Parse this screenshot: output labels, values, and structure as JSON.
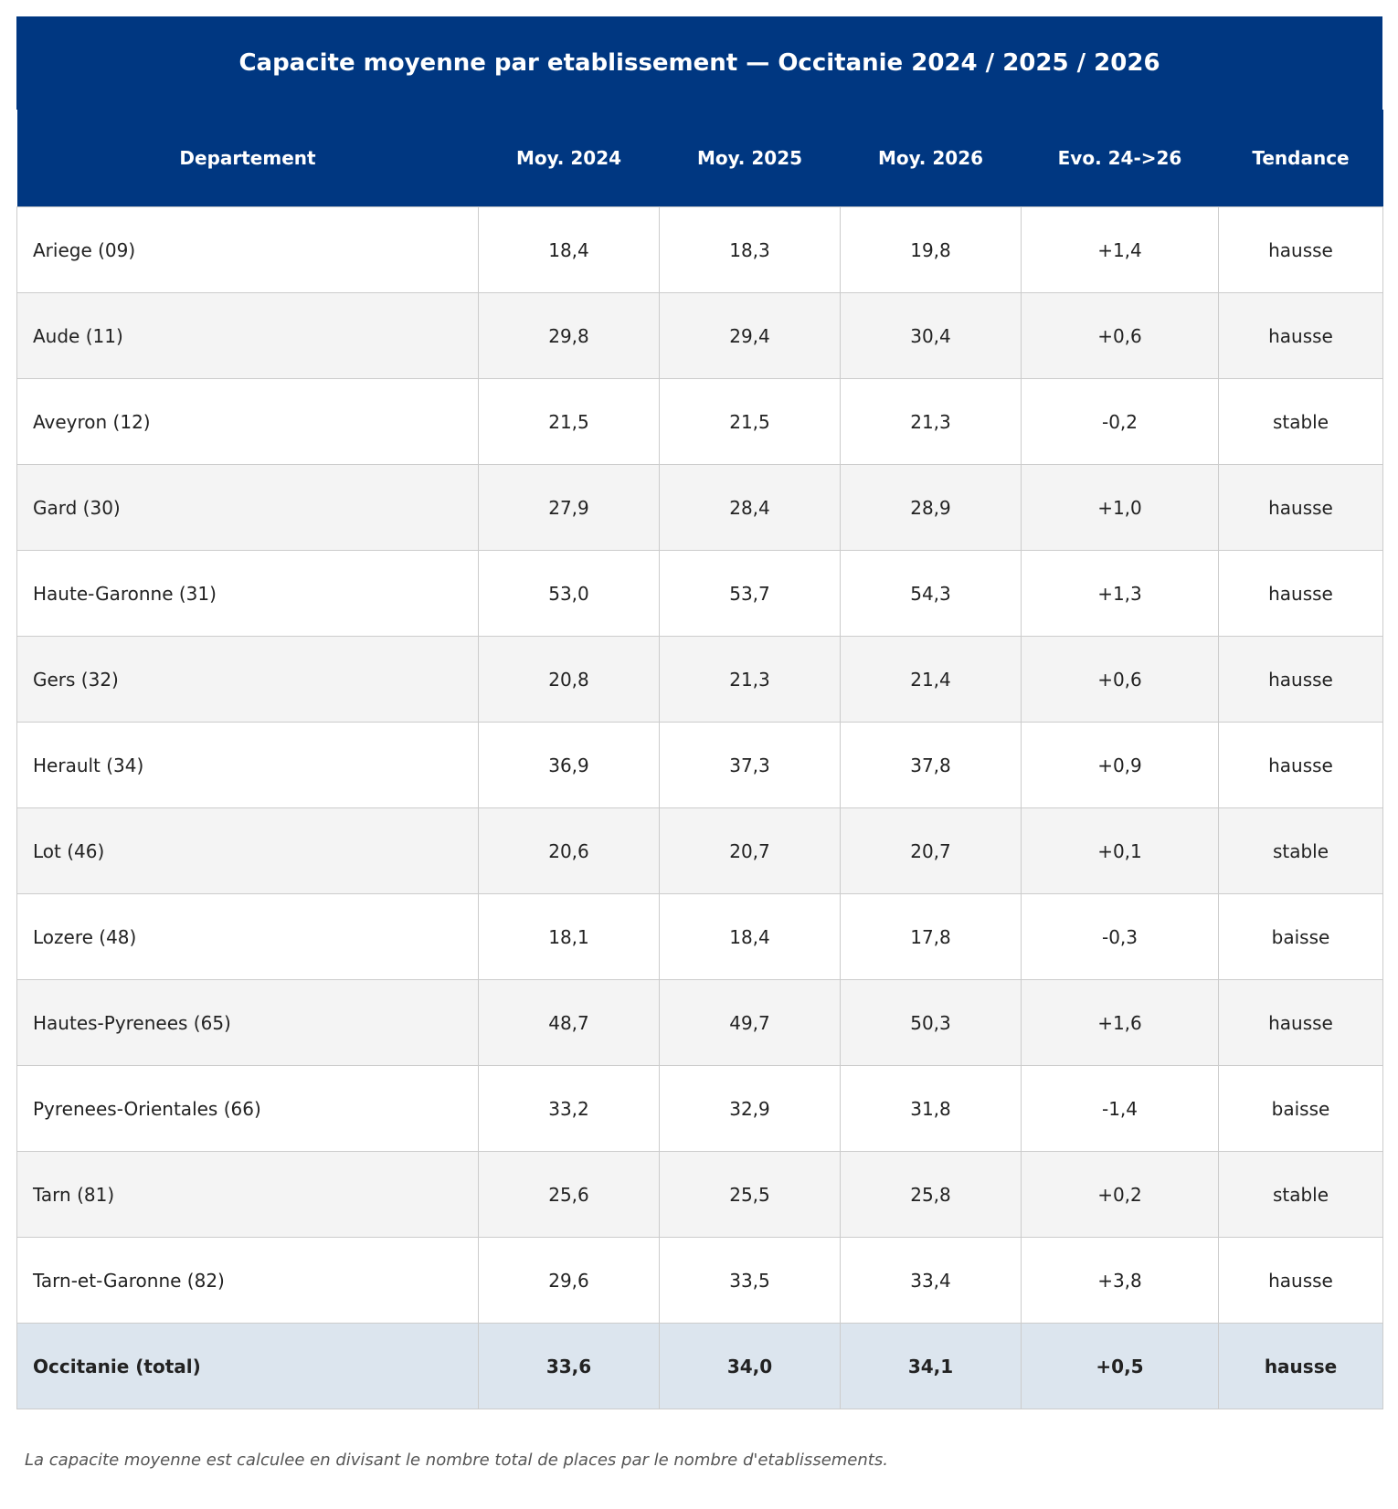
{
  "title": "Capacite moyenne par etablissement — Occitanie 2024 / 2025 / 2026",
  "columns": [
    "Departement",
    "Moy. 2024",
    "Moy. 2025",
    "Moy. 2026",
    "Evo. 24->26",
    "Tendance"
  ],
  "rows": [
    {
      "dept": "Ariege (09)",
      "m2024": "18,4",
      "m2025": "18,3",
      "m2026": "19,8",
      "evo": "+1,4",
      "trend": "hausse"
    },
    {
      "dept": "Aude (11)",
      "m2024": "29,8",
      "m2025": "29,4",
      "m2026": "30,4",
      "evo": "+0,6",
      "trend": "hausse"
    },
    {
      "dept": "Aveyron (12)",
      "m2024": "21,5",
      "m2025": "21,5",
      "m2026": "21,3",
      "evo": "-0,2",
      "trend": "stable"
    },
    {
      "dept": "Gard (30)",
      "m2024": "27,9",
      "m2025": "28,4",
      "m2026": "28,9",
      "evo": "+1,0",
      "trend": "hausse"
    },
    {
      "dept": "Haute-Garonne (31)",
      "m2024": "53,0",
      "m2025": "53,7",
      "m2026": "54,3",
      "evo": "+1,3",
      "trend": "hausse"
    },
    {
      "dept": "Gers (32)",
      "m2024": "20,8",
      "m2025": "21,3",
      "m2026": "21,4",
      "evo": "+0,6",
      "trend": "hausse"
    },
    {
      "dept": "Herault (34)",
      "m2024": "36,9",
      "m2025": "37,3",
      "m2026": "37,8",
      "evo": "+0,9",
      "trend": "hausse"
    },
    {
      "dept": "Lot (46)",
      "m2024": "20,6",
      "m2025": "20,7",
      "m2026": "20,7",
      "evo": "+0,1",
      "trend": "stable"
    },
    {
      "dept": "Lozere (48)",
      "m2024": "18,1",
      "m2025": "18,4",
      "m2026": "17,8",
      "evo": "-0,3",
      "trend": "baisse"
    },
    {
      "dept": "Hautes-Pyrenees (65)",
      "m2024": "48,7",
      "m2025": "49,7",
      "m2026": "50,3",
      "evo": "+1,6",
      "trend": "hausse"
    },
    {
      "dept": "Pyrenees-Orientales (66)",
      "m2024": "33,2",
      "m2025": "32,9",
      "m2026": "31,8",
      "evo": "-1,4",
      "trend": "baisse"
    },
    {
      "dept": "Tarn (81)",
      "m2024": "25,6",
      "m2025": "25,5",
      "m2026": "25,8",
      "evo": "+0,2",
      "trend": "stable"
    },
    {
      "dept": "Tarn-et-Garonne (82)",
      "m2024": "29,6",
      "m2025": "33,5",
      "m2026": "33,4",
      "evo": "+3,8",
      "trend": "hausse"
    }
  ],
  "total": {
    "dept": "Occitanie (total)",
    "m2024": "33,6",
    "m2025": "34,0",
    "m2026": "34,1",
    "evo": "+0,5",
    "trend": "hausse"
  },
  "footnote": "La capacite moyenne est calculee en divisant le nombre total de places par le nombre d'etablissements.",
  "colors": {
    "header_bg": "#003781",
    "alt_row_bg": "#f4f4f4",
    "total_row_bg": "#dce5ee",
    "border": "#cccccc"
  }
}
